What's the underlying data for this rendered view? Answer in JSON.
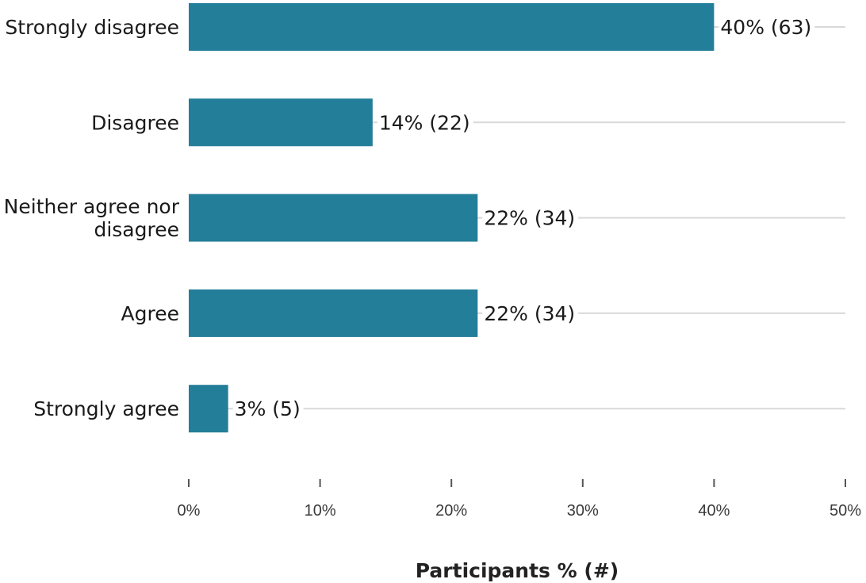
{
  "chart_data": {
    "type": "bar",
    "orientation": "horizontal",
    "categories": [
      [
        "Strongly disagree"
      ],
      [
        "Disagree"
      ],
      [
        "Neither agree nor",
        "disagree"
      ],
      [
        "Agree"
      ],
      [
        "Strongly agree"
      ]
    ],
    "values": [
      40,
      14,
      22,
      22,
      3
    ],
    "data_labels": [
      "40% (63)",
      "14% (22)",
      "22% (34)",
      "22% (34)",
      "3% (5)"
    ],
    "xlim": [
      0,
      50
    ],
    "x_ticks": [
      0,
      10,
      20,
      30,
      40,
      50
    ],
    "x_tick_labels": [
      "0%",
      "10%",
      "20%",
      "30%",
      "40%",
      "50%"
    ],
    "xlabel": "Participants % (#)",
    "grid": "horizontal lines at each category",
    "colors": {
      "bar": "#227e99",
      "gridline": "#d9d9d9",
      "tick": "#555555"
    }
  }
}
